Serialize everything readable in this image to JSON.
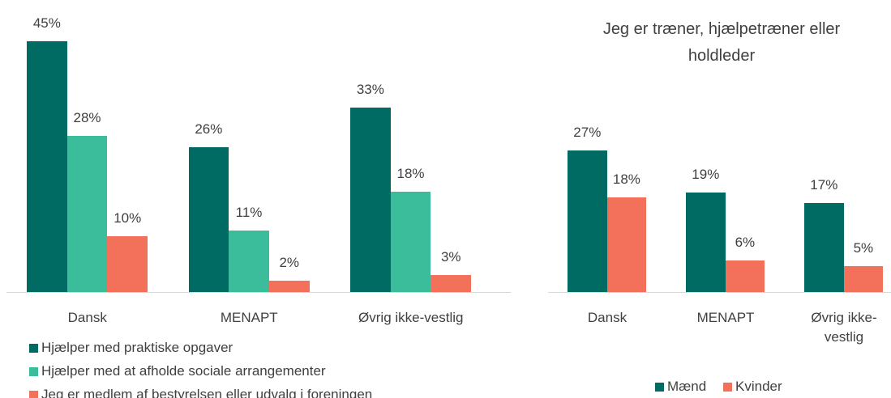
{
  "chart_data": [
    {
      "type": "bar",
      "categories": [
        "Dansk",
        "MENAPT",
        "Øvrig ikke-vestlig"
      ],
      "series": [
        {
          "name": "Hjælper med praktiske opgaver",
          "color": "#006b63",
          "values": [
            45,
            26,
            33
          ],
          "value_labels": [
            "45%",
            "26%",
            "33%"
          ]
        },
        {
          "name": "Hjælper med at afholde sociale arrangementer",
          "color": "#3bbd9b",
          "values": [
            28,
            11,
            18
          ],
          "value_labels": [
            "28%",
            "11%",
            "18%"
          ]
        },
        {
          "name": "Jeg er medlem af bestyrelsen eller udvalg i foreningen",
          "color": "#f3705a",
          "values": [
            10,
            2,
            3
          ],
          "value_labels": [
            "10%",
            "2%",
            "3%"
          ]
        }
      ],
      "legend": "bottom-left"
    },
    {
      "type": "bar",
      "title": "Jeg er træner, hjælpetræner eller holdleder",
      "categories": [
        "Dansk",
        "MENAPT",
        "Øvrig ikke-vestlig"
      ],
      "series": [
        {
          "name": "Mænd",
          "color": "#006b63",
          "values": [
            27,
            19,
            17
          ],
          "value_labels": [
            "27%",
            "19%",
            "17%"
          ]
        },
        {
          "name": "Kvinder",
          "color": "#f3705a",
          "values": [
            18,
            6,
            5
          ],
          "value_labels": [
            "18%",
            "6%",
            "5%"
          ]
        }
      ],
      "legend": "bottom"
    }
  ]
}
